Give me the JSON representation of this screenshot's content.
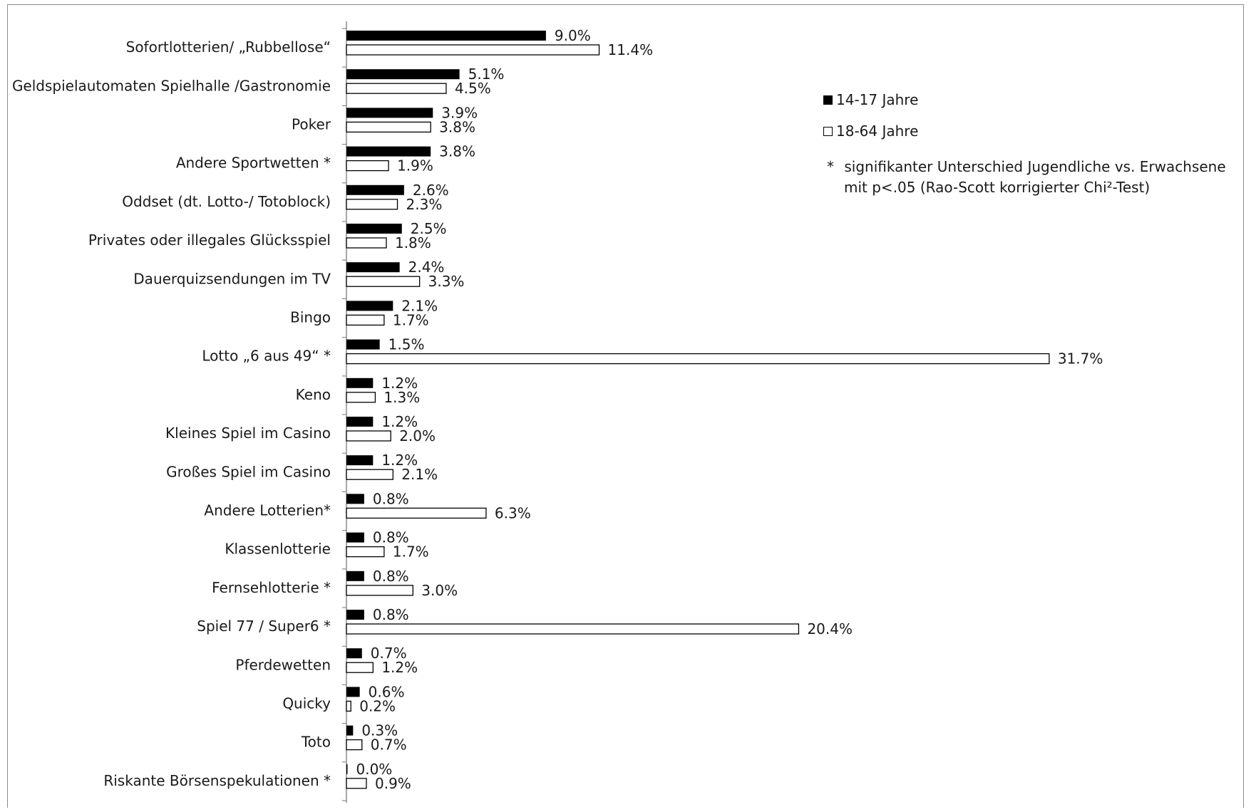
{
  "chart_data": {
    "type": "bar",
    "orientation": "horizontal",
    "categories": [
      "Sofortlotterien/ „Rubbellose“",
      "Geldspielautomaten Spielhalle /Gastronomie",
      "Poker",
      "Andere Sportwetten *",
      "Oddset (dt. Lotto-/ Totoblock)",
      "Privates oder illegales Glücksspiel",
      "Dauerquizsendungen im TV",
      "Bingo",
      "Lotto „6 aus 49“ *",
      "Keno",
      "Kleines Spiel im Casino",
      "Großes Spiel im Casino",
      "Andere Lotterien*",
      "Klassenlotterie",
      "Fernsehlotterie *",
      "Spiel 77 / Super6 *",
      "Pferdewetten",
      "Quicky",
      "Toto",
      "Riskante Börsenspekulationen *"
    ],
    "series": [
      {
        "name": "14-17 Jahre",
        "color": "#000000",
        "values": [
          9.0,
          5.1,
          3.9,
          3.8,
          2.6,
          2.5,
          2.4,
          2.1,
          1.5,
          1.2,
          1.2,
          1.2,
          0.8,
          0.8,
          0.8,
          0.8,
          0.7,
          0.6,
          0.3,
          0.0
        ],
        "labels": [
          "9.0%",
          "5.1%",
          "3.9%",
          "3.8%",
          "2.6%",
          "2.5%",
          "2.4%",
          "2.1%",
          "1.5%",
          "1.2%",
          "1.2%",
          "1.2%",
          "0.8%",
          "0.8%",
          "0.8%",
          "0.8%",
          "0.7%",
          "0.6%",
          "0.3%",
          "0.0%"
        ]
      },
      {
        "name": "18-64 Jahre",
        "color": "#ffffff",
        "values": [
          11.4,
          4.5,
          3.8,
          1.9,
          2.3,
          1.8,
          3.3,
          1.7,
          31.7,
          1.3,
          2.0,
          2.1,
          6.3,
          1.7,
          3.0,
          20.4,
          1.2,
          0.2,
          0.7,
          0.9
        ],
        "labels": [
          "11.4%",
          "4.5%",
          "3.8%",
          "1.9%",
          "2.3%",
          "1.8%",
          "3.3%",
          "1.7%",
          "31.7%",
          "1.3%",
          "2.0%",
          "2.1%",
          "6.3%",
          "1.7%",
          "3.0%",
          "20.4%",
          "1.2%",
          "0.2%",
          "0.7%",
          "0.9%"
        ]
      }
    ],
    "xlim": [
      0,
      35
    ],
    "legend_position": "top-right",
    "grid": false,
    "note": {
      "marker": "*",
      "line1": "signifikanter Unterschied Jugendliche vs. Erwachsene",
      "line2": "mit p<.05 (Rao-Scott korrigierter Chi²-Test)"
    }
  }
}
